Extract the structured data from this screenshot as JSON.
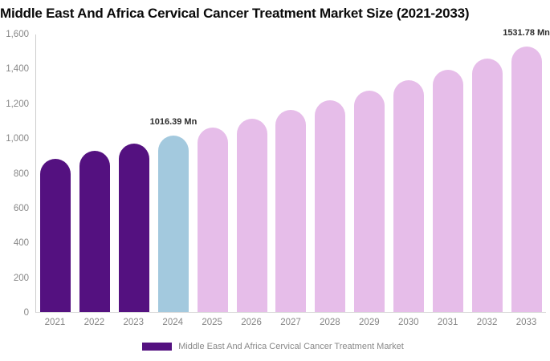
{
  "chart_data": {
    "type": "bar",
    "title": "Middle East And Africa Cervical Cancer Treatment Market Size (2021-2033)",
    "unit": "Mn",
    "categories": [
      "2021",
      "2022",
      "2023",
      "2024",
      "2025",
      "2026",
      "2027",
      "2028",
      "2029",
      "2030",
      "2031",
      "2032",
      "2033"
    ],
    "values": [
      885,
      928,
      971,
      1016.39,
      1064,
      1113,
      1165,
      1219,
      1276,
      1336,
      1398,
      1463,
      1531.78
    ],
    "bar_colors": [
      "#541180",
      "#541180",
      "#541180",
      "#a3c9de",
      "#e6bde9",
      "#e6bde9",
      "#e6bde9",
      "#e6bde9",
      "#e6bde9",
      "#e6bde9",
      "#e6bde9",
      "#e6bde9",
      "#e6bde9"
    ],
    "point_labels": [
      {
        "category": "2024",
        "text": "1016.39 Mn"
      },
      {
        "category": "2033",
        "text": "1531.78 Mn"
      }
    ],
    "ylim": [
      0,
      1600
    ],
    "yticks": [
      {
        "value": 0,
        "label": "0"
      },
      {
        "value": 200,
        "label": "200"
      },
      {
        "value": 400,
        "label": "400"
      },
      {
        "value": 600,
        "label": "600"
      },
      {
        "value": 800,
        "label": "800"
      },
      {
        "value": 1000,
        "label": "1,000"
      },
      {
        "value": 1200,
        "label": "1,200"
      },
      {
        "value": 1400,
        "label": "1,400"
      },
      {
        "value": 1600,
        "label": "1,600"
      }
    ],
    "grid": false,
    "legend_position": "bottom-center",
    "legend": [
      {
        "label": "Middle East And Africa Cervical Cancer Treatment Market",
        "color": "#541180"
      }
    ]
  }
}
